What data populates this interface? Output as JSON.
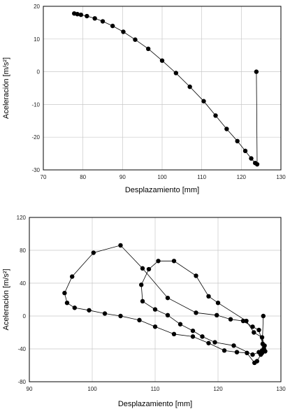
{
  "chart_data": [
    {
      "type": "scatter",
      "connected": true,
      "marker": "filled-circle",
      "title": "",
      "xlabel": "Desplazamiento [mm]",
      "ylabel": "Aceleración [m/s²]",
      "xlim": [
        70,
        130
      ],
      "ylim": [
        -30,
        20
      ],
      "xticks": [
        "70",
        "80",
        "90",
        "100",
        "110",
        "120",
        "130"
      ],
      "yticks": [
        "20",
        "10",
        "0",
        "-10",
        "-20",
        "-30"
      ],
      "grid": true,
      "series": [
        {
          "x": [
            77.8,
            78.6,
            79.5,
            81.0,
            83.0,
            85.0,
            87.5,
            90.2,
            93.2,
            96.5,
            100.0,
            103.5,
            107.0,
            110.5,
            113.5,
            116.3,
            119.0,
            121.0,
            122.5,
            123.5,
            124.0,
            123.8
          ],
          "y": [
            17.8,
            17.6,
            17.4,
            17.0,
            16.3,
            15.4,
            14.0,
            12.2,
            9.8,
            7.0,
            3.4,
            -0.4,
            -4.6,
            -9.0,
            -13.4,
            -17.5,
            -21.2,
            -24.2,
            -26.5,
            -27.9,
            -28.3,
            0.0
          ]
        }
      ],
      "color": "#000000"
    },
    {
      "type": "scatter",
      "connected": true,
      "marker": "filled-circle",
      "title": "",
      "xlabel": "Desplazamiento [mm]",
      "ylabel": "Aceleración [m/s²]",
      "xlim": [
        90,
        130
      ],
      "ylim": [
        -80,
        120
      ],
      "xticks": [
        "90",
        "100",
        "110",
        "120",
        "130"
      ],
      "yticks": [
        "120",
        "80",
        "40",
        "0",
        "-40",
        "-80"
      ],
      "grid": true,
      "series": [
        {
          "x": [
            127.2,
            127.0,
            126.8,
            126.2,
            125.8,
            124.6,
            123.0,
            121.0,
            118.5,
            116.0,
            113.0,
            110.0,
            107.5,
            104.5,
            102.0,
            99.5,
            97.2,
            96.0,
            95.6,
            96.8,
            100.2,
            104.5,
            108.0,
            112.0,
            116.5,
            119.8,
            122.0,
            124.0,
            125.5,
            126.5,
            127.1,
            127.3,
            127.0,
            126.5,
            125.5,
            122.5,
            119.5,
            117.5,
            116.0,
            114.0,
            112.0,
            110.0,
            108.0,
            107.8,
            109.0,
            110.5,
            113.0,
            116.5,
            118.5,
            120.0,
            124.5,
            125.7,
            127.0,
            127.4,
            127.5
          ],
          "y": [
            0.0,
            -42.0,
            -47.0,
            -55.0,
            -57.0,
            -45.0,
            -44.0,
            -42.0,
            -33.0,
            -25.0,
            -22.0,
            -13.0,
            -5.0,
            0.0,
            3.0,
            7.0,
            10.0,
            16.0,
            28.0,
            48.0,
            77.0,
            86.0,
            58.0,
            22.0,
            4.0,
            1.0,
            -4.0,
            -6.0,
            -13.0,
            -17.0,
            -34.0,
            -40.0,
            -45.0,
            -44.0,
            -47.0,
            -36.0,
            -32.0,
            -25.0,
            -18.0,
            -10.0,
            1.0,
            8.0,
            18.0,
            38.0,
            57.0,
            67.0,
            67.0,
            49.0,
            24.0,
            16.0,
            -6.0,
            -20.0,
            -26.0,
            -36.0,
            -43.0
          ]
        }
      ],
      "color": "#000000"
    }
  ]
}
